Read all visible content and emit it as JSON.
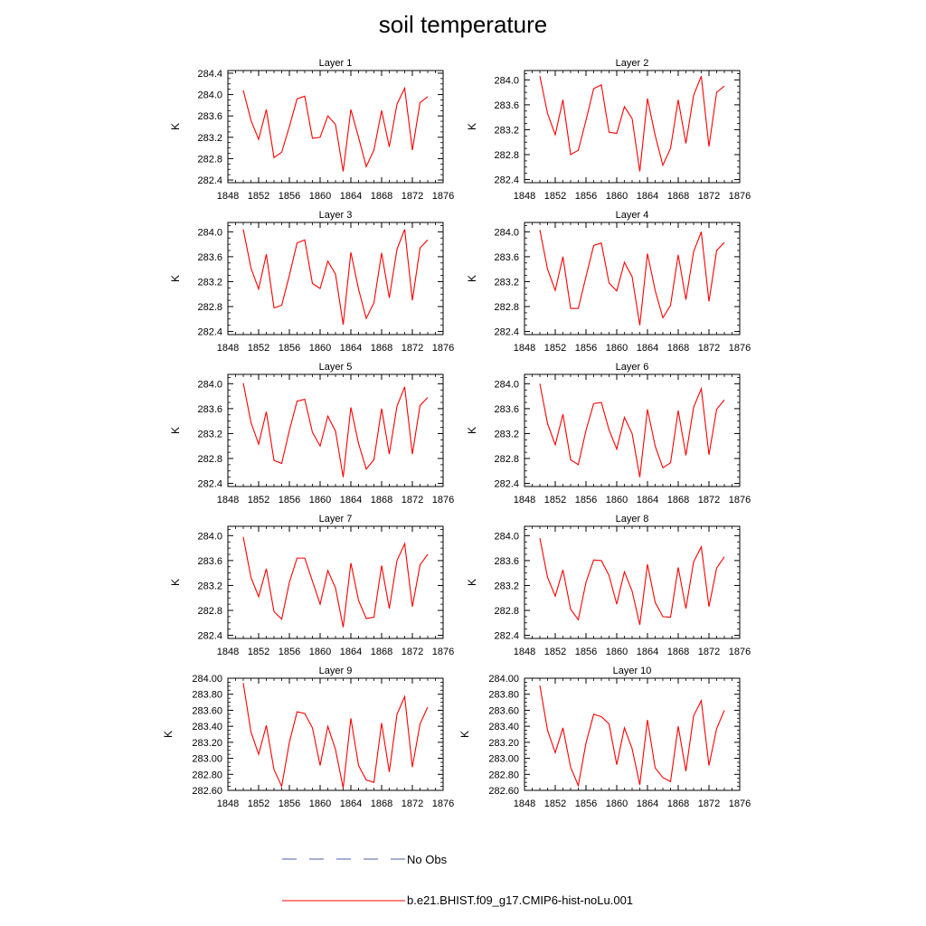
{
  "title": "soil temperature",
  "legend": {
    "items": [
      {
        "label": "No Obs",
        "color": "#4b5ea8",
        "dash": true
      },
      {
        "label": "b.e21.BHIST.f09_g17.CMIP6-hist-noLu.001",
        "color": "#ff0000",
        "dash": false
      }
    ]
  },
  "colors": {
    "series": "#ff0000",
    "obs": "#4b5ea8"
  },
  "chart_data": [
    {
      "type": "line",
      "title": "Layer 1",
      "ylabel": "K",
      "xlim": [
        1848,
        1876
      ],
      "ylim": [
        282.35,
        284.45
      ],
      "xticks": [
        1848,
        1852,
        1856,
        1860,
        1864,
        1868,
        1872,
        1876
      ],
      "yticks": [
        282.4,
        282.8,
        283.2,
        283.6,
        284.0,
        284.4
      ],
      "ytick_labels": [
        "282.4",
        "282.8",
        "283.2",
        "283.6",
        "284.0",
        "284.4"
      ],
      "x": [
        1850,
        1851,
        1852,
        1853,
        1854,
        1855,
        1856,
        1857,
        1858,
        1859,
        1860,
        1861,
        1862,
        1863,
        1864,
        1865,
        1866,
        1867,
        1868,
        1869,
        1870,
        1871,
        1872,
        1873,
        1874
      ],
      "series": [
        {
          "name": "b.e21.BHIST.f09_g17.CMIP6-hist-noLu.001",
          "values": [
            284.08,
            283.52,
            283.16,
            283.72,
            282.82,
            282.92,
            283.4,
            283.92,
            283.97,
            283.18,
            283.2,
            283.6,
            283.44,
            282.56,
            283.72,
            283.2,
            282.65,
            282.96,
            283.7,
            283.02,
            283.82,
            284.12,
            282.96,
            283.85,
            283.96
          ]
        }
      ]
    },
    {
      "type": "line",
      "title": "Layer 2",
      "ylabel": "K",
      "xlim": [
        1848,
        1876
      ],
      "ylim": [
        282.35,
        284.15
      ],
      "xticks": [
        1848,
        1852,
        1856,
        1860,
        1864,
        1868,
        1872,
        1876
      ],
      "yticks": [
        282.4,
        282.8,
        283.2,
        283.6,
        284.0
      ],
      "ytick_labels": [
        "282.4",
        "282.8",
        "283.2",
        "283.6",
        "284.0"
      ],
      "x": [
        1850,
        1851,
        1852,
        1853,
        1854,
        1855,
        1856,
        1857,
        1858,
        1859,
        1860,
        1861,
        1862,
        1863,
        1864,
        1865,
        1866,
        1867,
        1868,
        1869,
        1870,
        1871,
        1872,
        1873,
        1874
      ],
      "series": [
        {
          "name": "b.e21.BHIST.f09_g17.CMIP6-hist-noLu.001",
          "values": [
            284.06,
            283.46,
            283.12,
            283.68,
            282.8,
            282.87,
            283.35,
            283.86,
            283.92,
            283.16,
            283.14,
            283.57,
            283.38,
            282.53,
            283.7,
            283.11,
            282.63,
            282.9,
            283.68,
            282.98,
            283.75,
            284.06,
            282.93,
            283.8,
            283.9
          ]
        }
      ]
    },
    {
      "type": "line",
      "title": "Layer 3",
      "ylabel": "K",
      "xlim": [
        1848,
        1876
      ],
      "ylim": [
        282.35,
        284.15
      ],
      "xticks": [
        1848,
        1852,
        1856,
        1860,
        1864,
        1868,
        1872,
        1876
      ],
      "yticks": [
        282.4,
        282.8,
        283.2,
        283.6,
        284.0
      ],
      "ytick_labels": [
        "282.4",
        "282.8",
        "283.2",
        "283.6",
        "284.0"
      ],
      "x": [
        1850,
        1851,
        1852,
        1853,
        1854,
        1855,
        1856,
        1857,
        1858,
        1859,
        1860,
        1861,
        1862,
        1863,
        1864,
        1865,
        1866,
        1867,
        1868,
        1869,
        1870,
        1871,
        1872,
        1873,
        1874
      ],
      "series": [
        {
          "name": "b.e21.BHIST.f09_g17.CMIP6-hist-noLu.001",
          "values": [
            284.04,
            283.42,
            283.08,
            283.64,
            282.78,
            282.82,
            283.3,
            283.82,
            283.87,
            283.17,
            283.09,
            283.53,
            283.32,
            282.51,
            283.67,
            283.08,
            282.61,
            282.86,
            283.66,
            282.94,
            283.72,
            284.04,
            282.9,
            283.74,
            283.87
          ]
        }
      ]
    },
    {
      "type": "line",
      "title": "Layer 4",
      "ylabel": "K",
      "xlim": [
        1848,
        1876
      ],
      "ylim": [
        282.35,
        284.15
      ],
      "xticks": [
        1848,
        1852,
        1856,
        1860,
        1864,
        1868,
        1872,
        1876
      ],
      "yticks": [
        282.4,
        282.8,
        283.2,
        283.6,
        284.0
      ],
      "ytick_labels": [
        "282.4",
        "282.8",
        "283.2",
        "283.6",
        "284.0"
      ],
      "x": [
        1850,
        1851,
        1852,
        1853,
        1854,
        1855,
        1856,
        1857,
        1858,
        1859,
        1860,
        1861,
        1862,
        1863,
        1864,
        1865,
        1866,
        1867,
        1868,
        1869,
        1870,
        1871,
        1872,
        1873,
        1874
      ],
      "series": [
        {
          "name": "b.e21.BHIST.f09_g17.CMIP6-hist-noLu.001",
          "values": [
            284.03,
            283.4,
            283.06,
            283.6,
            282.77,
            282.77,
            283.28,
            283.78,
            283.82,
            283.18,
            283.05,
            283.51,
            283.28,
            282.5,
            283.65,
            283.06,
            282.62,
            282.82,
            283.63,
            282.91,
            283.68,
            284.0,
            282.88,
            283.7,
            283.83
          ]
        }
      ]
    },
    {
      "type": "line",
      "title": "Layer 5",
      "ylabel": "K",
      "xlim": [
        1848,
        1876
      ],
      "ylim": [
        282.35,
        284.15
      ],
      "xticks": [
        1848,
        1852,
        1856,
        1860,
        1864,
        1868,
        1872,
        1876
      ],
      "yticks": [
        282.4,
        282.8,
        283.2,
        283.6,
        284.0
      ],
      "ytick_labels": [
        "282.4",
        "282.8",
        "283.2",
        "283.6",
        "284.0"
      ],
      "x": [
        1850,
        1851,
        1852,
        1853,
        1854,
        1855,
        1856,
        1857,
        1858,
        1859,
        1860,
        1861,
        1862,
        1863,
        1864,
        1865,
        1866,
        1867,
        1868,
        1869,
        1870,
        1871,
        1872,
        1873,
        1874
      ],
      "series": [
        {
          "name": "b.e21.BHIST.f09_g17.CMIP6-hist-noLu.001",
          "values": [
            284.01,
            283.38,
            283.03,
            283.55,
            282.77,
            282.72,
            283.25,
            283.72,
            283.75,
            283.22,
            283.0,
            283.48,
            283.24,
            282.5,
            283.62,
            283.04,
            282.63,
            282.78,
            283.6,
            282.87,
            283.64,
            283.95,
            282.87,
            283.65,
            283.78
          ]
        }
      ]
    },
    {
      "type": "line",
      "title": "Layer 6",
      "ylabel": "K",
      "xlim": [
        1848,
        1876
      ],
      "ylim": [
        282.35,
        284.15
      ],
      "xticks": [
        1848,
        1852,
        1856,
        1860,
        1864,
        1868,
        1872,
        1876
      ],
      "yticks": [
        282.4,
        282.8,
        283.2,
        283.6,
        284.0
      ],
      "ytick_labels": [
        "282.4",
        "282.8",
        "283.2",
        "283.6",
        "284.0"
      ],
      "x": [
        1850,
        1851,
        1852,
        1853,
        1854,
        1855,
        1856,
        1857,
        1858,
        1859,
        1860,
        1861,
        1862,
        1863,
        1864,
        1865,
        1866,
        1867,
        1868,
        1869,
        1870,
        1871,
        1872,
        1873,
        1874
      ],
      "series": [
        {
          "name": "b.e21.BHIST.f09_g17.CMIP6-hist-noLu.001",
          "values": [
            284.0,
            283.36,
            283.02,
            283.51,
            282.78,
            282.7,
            283.25,
            283.68,
            283.7,
            283.26,
            282.95,
            283.46,
            283.2,
            282.5,
            283.59,
            283.0,
            282.65,
            282.73,
            283.57,
            282.85,
            283.62,
            283.92,
            282.86,
            283.59,
            283.74
          ]
        }
      ]
    },
    {
      "type": "line",
      "title": "Layer 7",
      "ylabel": "K",
      "xlim": [
        1848,
        1876
      ],
      "ylim": [
        282.35,
        284.15
      ],
      "xticks": [
        1848,
        1852,
        1856,
        1860,
        1864,
        1868,
        1872,
        1876
      ],
      "yticks": [
        282.4,
        282.8,
        283.2,
        283.6,
        284.0
      ],
      "ytick_labels": [
        "282.4",
        "282.8",
        "283.2",
        "283.6",
        "284.0"
      ],
      "x": [
        1850,
        1851,
        1852,
        1853,
        1854,
        1855,
        1856,
        1857,
        1858,
        1859,
        1860,
        1861,
        1862,
        1863,
        1864,
        1865,
        1866,
        1867,
        1868,
        1869,
        1870,
        1871,
        1872,
        1873,
        1874
      ],
      "series": [
        {
          "name": "b.e21.BHIST.f09_g17.CMIP6-hist-noLu.001",
          "values": [
            283.98,
            283.33,
            283.02,
            283.47,
            282.78,
            282.66,
            283.25,
            283.64,
            283.64,
            283.27,
            282.9,
            283.44,
            283.16,
            282.53,
            283.56,
            282.96,
            282.67,
            282.69,
            283.52,
            282.83,
            283.6,
            283.87,
            282.86,
            283.53,
            283.7
          ]
        }
      ]
    },
    {
      "type": "line",
      "title": "Layer 8",
      "ylabel": "K",
      "xlim": [
        1848,
        1876
      ],
      "ylim": [
        282.35,
        284.15
      ],
      "xticks": [
        1848,
        1852,
        1856,
        1860,
        1864,
        1868,
        1872,
        1876
      ],
      "yticks": [
        282.4,
        282.8,
        283.2,
        283.6,
        284.0
      ],
      "ytick_labels": [
        "282.4",
        "282.8",
        "283.2",
        "283.6",
        "284.0"
      ],
      "x": [
        1850,
        1851,
        1852,
        1853,
        1854,
        1855,
        1856,
        1857,
        1858,
        1859,
        1860,
        1861,
        1862,
        1863,
        1864,
        1865,
        1866,
        1867,
        1868,
        1869,
        1870,
        1871,
        1872,
        1873,
        1874
      ],
      "series": [
        {
          "name": "b.e21.BHIST.f09_g17.CMIP6-hist-noLu.001",
          "values": [
            283.96,
            283.33,
            283.03,
            283.45,
            282.82,
            282.65,
            283.25,
            283.61,
            283.6,
            283.36,
            282.9,
            283.42,
            283.11,
            282.57,
            283.54,
            282.93,
            282.7,
            282.69,
            283.49,
            282.83,
            283.58,
            283.82,
            282.86,
            283.48,
            283.66
          ]
        }
      ]
    },
    {
      "type": "line",
      "title": "Layer 9",
      "ylabel": "K",
      "xlim": [
        1848,
        1876
      ],
      "ylim": [
        282.6,
        284.0
      ],
      "xticks": [
        1848,
        1852,
        1856,
        1860,
        1864,
        1868,
        1872,
        1876
      ],
      "yticks": [
        282.6,
        282.8,
        283.0,
        283.2,
        283.4,
        283.6,
        283.8,
        284.0
      ],
      "ytick_labels": [
        "282.60",
        "282.80",
        "283.00",
        "283.20",
        "283.40",
        "283.60",
        "283.80",
        "284.00"
      ],
      "x": [
        1850,
        1851,
        1852,
        1853,
        1854,
        1855,
        1856,
        1857,
        1858,
        1859,
        1860,
        1861,
        1862,
        1863,
        1864,
        1865,
        1866,
        1867,
        1868,
        1869,
        1870,
        1871,
        1872,
        1873,
        1874
      ],
      "series": [
        {
          "name": "b.e21.BHIST.f09_g17.CMIP6-hist-noLu.001",
          "values": [
            283.94,
            283.33,
            283.05,
            283.41,
            282.86,
            282.65,
            283.2,
            283.58,
            283.56,
            283.38,
            282.91,
            283.4,
            283.11,
            282.63,
            283.5,
            282.91,
            282.73,
            282.7,
            283.44,
            282.83,
            283.55,
            283.77,
            282.89,
            283.43,
            283.64
          ]
        }
      ]
    },
    {
      "type": "line",
      "title": "Layer 10",
      "ylabel": "K",
      "xlim": [
        1848,
        1876
      ],
      "ylim": [
        282.6,
        284.0
      ],
      "xticks": [
        1848,
        1852,
        1856,
        1860,
        1864,
        1868,
        1872,
        1876
      ],
      "yticks": [
        282.6,
        282.8,
        283.0,
        283.2,
        283.4,
        283.6,
        283.8,
        284.0
      ],
      "ytick_labels": [
        "282.60",
        "282.80",
        "283.00",
        "283.20",
        "283.40",
        "283.60",
        "283.80",
        "284.00"
      ],
      "x": [
        1850,
        1851,
        1852,
        1853,
        1854,
        1855,
        1856,
        1857,
        1858,
        1859,
        1860,
        1861,
        1862,
        1863,
        1864,
        1865,
        1866,
        1867,
        1868,
        1869,
        1870,
        1871,
        1872,
        1873,
        1874
      ],
      "series": [
        {
          "name": "b.e21.BHIST.f09_g17.CMIP6-hist-noLu.001",
          "values": [
            283.91,
            283.35,
            283.07,
            283.38,
            282.89,
            282.66,
            283.19,
            283.55,
            283.52,
            283.43,
            282.92,
            283.38,
            283.12,
            282.67,
            283.48,
            282.88,
            282.76,
            282.71,
            283.4,
            282.84,
            283.53,
            283.72,
            282.91,
            283.37,
            283.6
          ]
        }
      ]
    }
  ]
}
